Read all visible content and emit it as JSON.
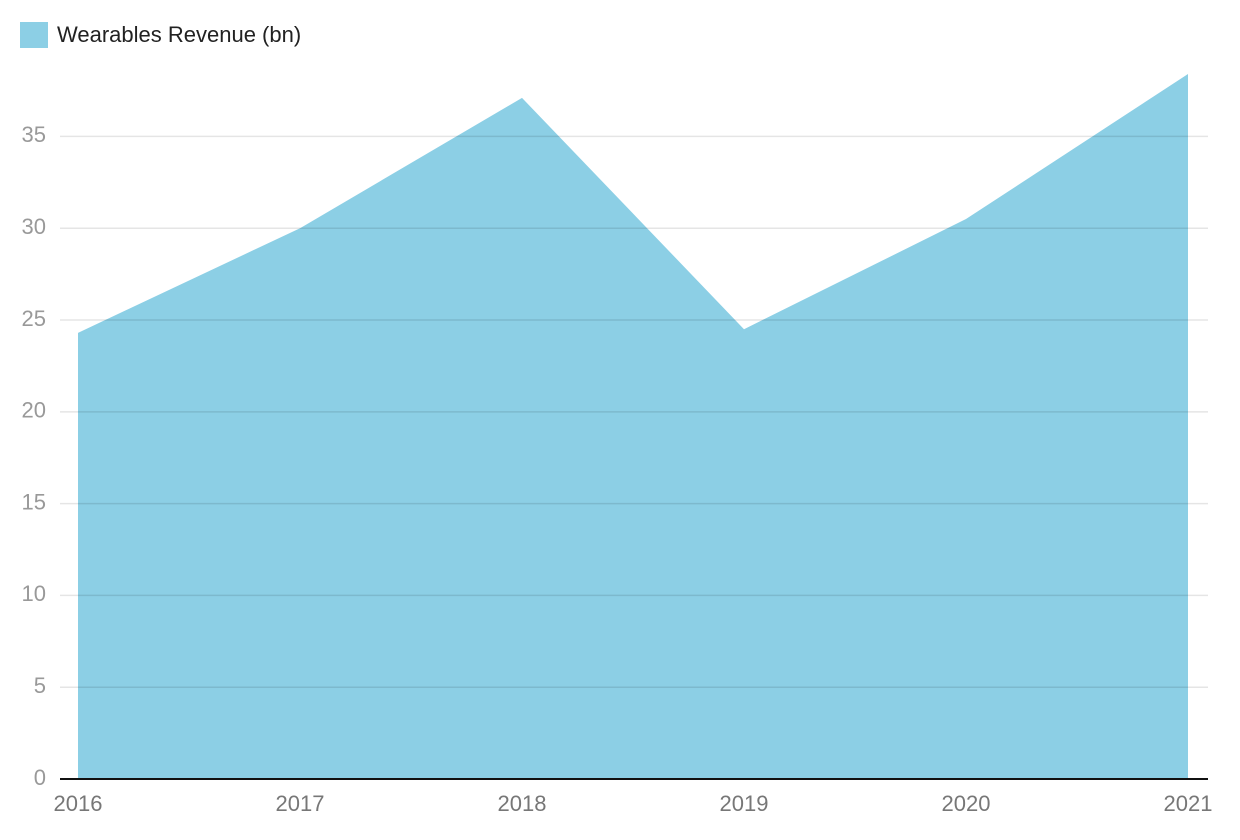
{
  "chart_data": {
    "type": "area",
    "categories": [
      "2016",
      "2017",
      "2018",
      "2019",
      "2020",
      "2021"
    ],
    "series": [
      {
        "name": "Wearables Revenue (bn)",
        "color": "#8ccfe5",
        "values": [
          24.3,
          30,
          37.1,
          24.5,
          30.5,
          38.4
        ]
      }
    ],
    "ylim": [
      0,
      38.4
    ],
    "yticks": [
      0,
      5,
      10,
      15,
      20,
      25,
      30,
      35
    ],
    "grid": true,
    "legend": "top-left"
  }
}
